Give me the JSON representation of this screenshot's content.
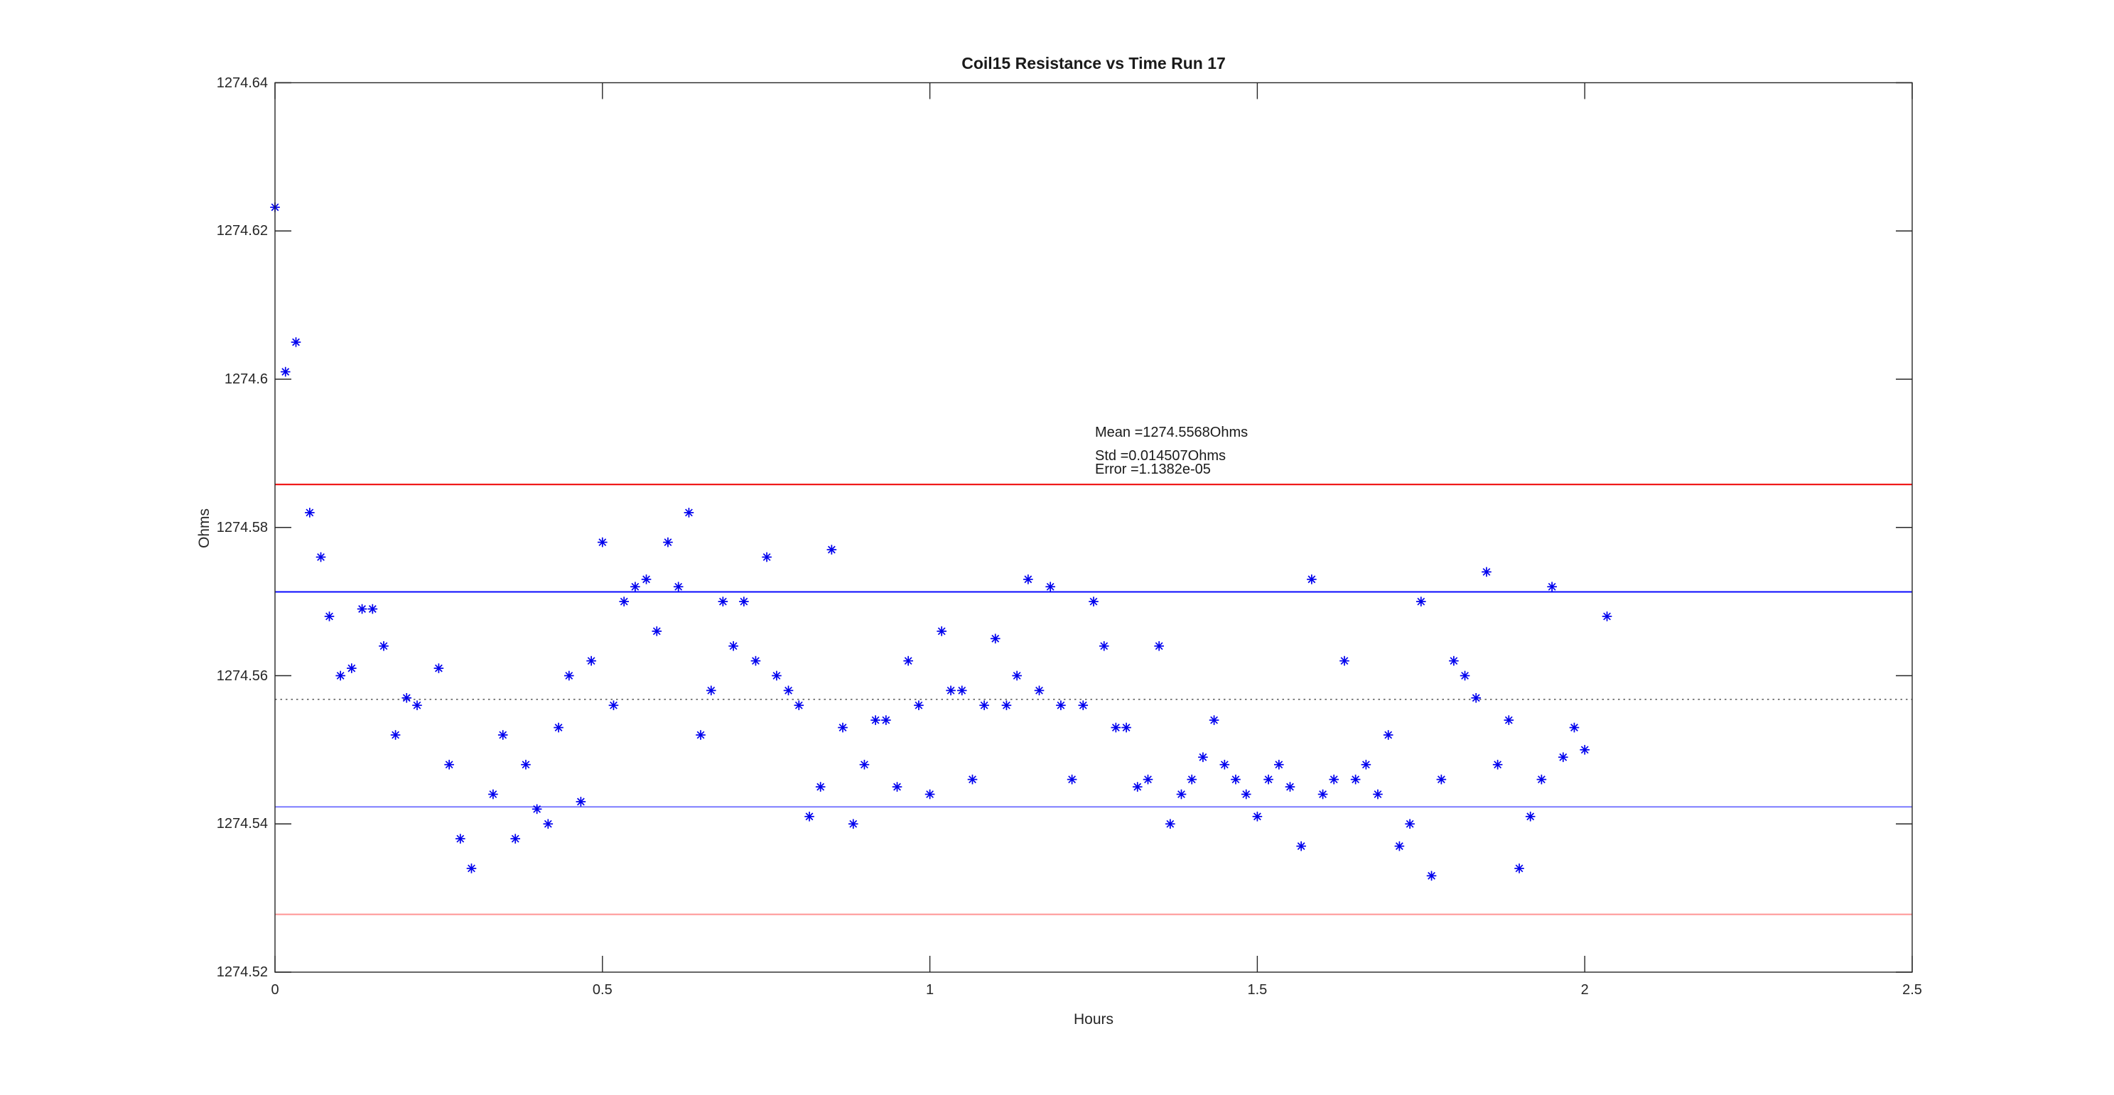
{
  "title": "Coil15 Resistance vs Time Run 17",
  "axes": {
    "xlabel": "Hours",
    "ylabel": "Ohms",
    "x_tick_labels": [
      "0",
      "0.5",
      "1",
      "1.5",
      "2",
      "2.5"
    ],
    "x_tick_values": [
      0,
      0.5,
      1,
      1.5,
      2,
      2.5
    ],
    "y_tick_labels": [
      "1274.52",
      "1274.54",
      "1274.56",
      "1274.58",
      "1274.6",
      "1274.62",
      "1274.64"
    ],
    "y_tick_values": [
      1274.52,
      1274.54,
      1274.56,
      1274.58,
      1274.6,
      1274.62,
      1274.64
    ]
  },
  "annotation": {
    "mean_label": "Mean =1274.5568Ohms",
    "std_label": "Std =0.014507Ohms",
    "error_label": "Error =1.1382e-05"
  },
  "chart_data": {
    "type": "scatter",
    "title": "Coil15 Resistance vs Time Run 17",
    "xlabel": "Hours",
    "ylabel": "Ohms",
    "xlim": [
      0,
      2.5
    ],
    "ylim": [
      1274.52,
      1274.64
    ],
    "grid": false,
    "legend": "none",
    "marker": "asterisk",
    "marker_color": "#0000ee",
    "axis_color": "#262626",
    "stats": {
      "mean": 1274.5568,
      "std": 0.014507,
      "error": 1.1382e-05
    },
    "reference_lines": [
      {
        "name": "mean-dotted",
        "value": 1274.5568,
        "style": "dotted",
        "color": "#555555"
      },
      {
        "name": "plus-1-sigma",
        "value": 1274.5713,
        "style": "solid",
        "color": "#0a0aff"
      },
      {
        "name": "minus-1-sigma",
        "value": 1274.5423,
        "style": "solid",
        "color": "#7b7bff"
      },
      {
        "name": "plus-2-sigma",
        "value": 1274.5858,
        "style": "solid",
        "color": "#ee0000"
      },
      {
        "name": "minus-2-sigma",
        "value": 1274.5278,
        "style": "solid",
        "color": "#ff9595"
      }
    ],
    "series": [
      {
        "name": "resistance",
        "points": [
          [
            0.0,
            1274.6232
          ],
          [
            0.016,
            1274.601
          ],
          [
            0.032,
            1274.605
          ],
          [
            0.053,
            1274.582
          ],
          [
            0.07,
            1274.576
          ],
          [
            0.083,
            1274.568
          ],
          [
            0.1,
            1274.56
          ],
          [
            0.117,
            1274.561
          ],
          [
            0.133,
            1274.569
          ],
          [
            0.149,
            1274.569
          ],
          [
            0.166,
            1274.564
          ],
          [
            0.184,
            1274.552
          ],
          [
            0.201,
            1274.557
          ],
          [
            0.217,
            1274.556
          ],
          [
            0.25,
            1274.561
          ],
          [
            0.266,
            1274.548
          ],
          [
            0.283,
            1274.538
          ],
          [
            0.3,
            1274.534
          ],
          [
            0.333,
            1274.544
          ],
          [
            0.348,
            1274.552
          ],
          [
            0.367,
            1274.538
          ],
          [
            0.383,
            1274.548
          ],
          [
            0.4,
            1274.542
          ],
          [
            0.417,
            1274.54
          ],
          [
            0.433,
            1274.553
          ],
          [
            0.449,
            1274.56
          ],
          [
            0.467,
            1274.543
          ],
          [
            0.483,
            1274.562
          ],
          [
            0.5,
            1274.578
          ],
          [
            0.517,
            1274.556
          ],
          [
            0.533,
            1274.57
          ],
          [
            0.55,
            1274.572
          ],
          [
            0.567,
            1274.573
          ],
          [
            0.583,
            1274.566
          ],
          [
            0.6,
            1274.578
          ],
          [
            0.616,
            1274.572
          ],
          [
            0.632,
            1274.582
          ],
          [
            0.65,
            1274.552
          ],
          [
            0.666,
            1274.558
          ],
          [
            0.684,
            1274.57
          ],
          [
            0.7,
            1274.564
          ],
          [
            0.716,
            1274.57
          ],
          [
            0.734,
            1274.562
          ],
          [
            0.751,
            1274.576
          ],
          [
            0.766,
            1274.56
          ],
          [
            0.784,
            1274.558
          ],
          [
            0.8,
            1274.556
          ],
          [
            0.816,
            1274.541
          ],
          [
            0.833,
            1274.545
          ],
          [
            0.85,
            1274.577
          ],
          [
            0.867,
            1274.553
          ],
          [
            0.883,
            1274.54
          ],
          [
            0.9,
            1274.548
          ],
          [
            0.917,
            1274.554
          ],
          [
            0.933,
            1274.554
          ],
          [
            0.95,
            1274.545
          ],
          [
            0.967,
            1274.562
          ],
          [
            0.983,
            1274.556
          ],
          [
            1.0,
            1274.544
          ],
          [
            1.018,
            1274.566
          ],
          [
            1.032,
            1274.558
          ],
          [
            1.049,
            1274.558
          ],
          [
            1.065,
            1274.546
          ],
          [
            1.083,
            1274.556
          ],
          [
            1.1,
            1274.565
          ],
          [
            1.117,
            1274.556
          ],
          [
            1.133,
            1274.56
          ],
          [
            1.15,
            1274.573
          ],
          [
            1.167,
            1274.558
          ],
          [
            1.184,
            1274.572
          ],
          [
            1.2,
            1274.556
          ],
          [
            1.217,
            1274.546
          ],
          [
            1.234,
            1274.556
          ],
          [
            1.25,
            1274.57
          ],
          [
            1.266,
            1274.564
          ],
          [
            1.284,
            1274.553
          ],
          [
            1.3,
            1274.553
          ],
          [
            1.317,
            1274.545
          ],
          [
            1.333,
            1274.546
          ],
          [
            1.35,
            1274.564
          ],
          [
            1.367,
            1274.54
          ],
          [
            1.384,
            1274.544
          ],
          [
            1.4,
            1274.546
          ],
          [
            1.417,
            1274.549
          ],
          [
            1.434,
            1274.554
          ],
          [
            1.45,
            1274.548
          ],
          [
            1.467,
            1274.546
          ],
          [
            1.483,
            1274.544
          ],
          [
            1.5,
            1274.541
          ],
          [
            1.517,
            1274.546
          ],
          [
            1.533,
            1274.548
          ],
          [
            1.55,
            1274.545
          ],
          [
            1.567,
            1274.537
          ],
          [
            1.583,
            1274.573
          ],
          [
            1.6,
            1274.544
          ],
          [
            1.617,
            1274.546
          ],
          [
            1.633,
            1274.562
          ],
          [
            1.65,
            1274.546
          ],
          [
            1.666,
            1274.548
          ],
          [
            1.684,
            1274.544
          ],
          [
            1.7,
            1274.552
          ],
          [
            1.717,
            1274.537
          ],
          [
            1.733,
            1274.54
          ],
          [
            1.75,
            1274.57
          ],
          [
            1.766,
            1274.533
          ],
          [
            1.781,
            1274.546
          ],
          [
            1.8,
            1274.562
          ],
          [
            1.817,
            1274.56
          ],
          [
            1.834,
            1274.557
          ],
          [
            1.85,
            1274.574
          ],
          [
            1.867,
            1274.548
          ],
          [
            1.884,
            1274.554
          ],
          [
            1.9,
            1274.534
          ],
          [
            1.917,
            1274.541
          ],
          [
            1.934,
            1274.546
          ],
          [
            1.95,
            1274.572
          ],
          [
            1.967,
            1274.549
          ],
          [
            1.984,
            1274.553
          ],
          [
            2.0,
            1274.55
          ],
          [
            2.034,
            1274.568
          ]
        ]
      }
    ]
  }
}
